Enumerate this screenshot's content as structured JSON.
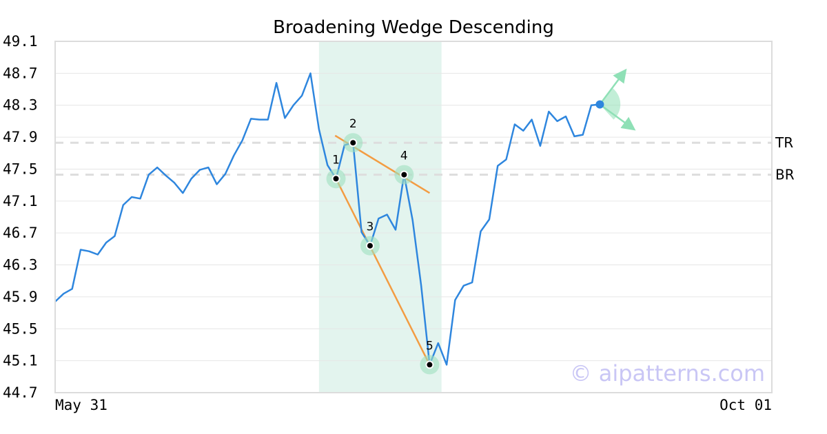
{
  "chart_data": {
    "type": "line",
    "title": "Broadening Wedge Descending",
    "xlabel": "",
    "ylabel": "",
    "x_tick_labels": [
      "May 31",
      "Oct 01"
    ],
    "y_ticks": [
      "49.1",
      "48.7",
      "48.3",
      "47.9",
      "47.5",
      "47.1",
      "46.7",
      "46.3",
      "45.9",
      "45.5",
      "45.1",
      "44.7"
    ],
    "ylim": [
      44.7,
      49.1
    ],
    "grid": true,
    "colors": {
      "price": "#2e86de",
      "trendline": "#f39c42",
      "highlight": "#e3f4ee",
      "pivot": "#9fe0c0",
      "level": "#dddddd",
      "arrow": "#8fe0b6",
      "last_point": "#2e86de"
    },
    "series": [
      {
        "values": [
          45.84,
          45.94,
          46.0,
          46.49,
          46.47,
          46.43,
          46.58,
          46.66,
          47.05,
          47.15,
          47.13,
          47.43,
          47.52,
          47.42,
          47.33,
          47.2,
          47.38,
          47.49,
          47.52,
          47.31,
          47.44,
          47.67,
          47.86,
          48.13,
          48.12,
          48.12,
          48.58,
          48.14,
          48.3,
          48.42,
          48.7,
          48.0,
          47.55,
          47.38,
          47.8,
          47.83,
          46.71,
          46.54,
          46.88,
          46.93,
          46.74,
          47.43,
          46.86,
          46.05,
          45.05,
          45.32,
          45.05,
          45.86,
          46.04,
          46.08,
          46.72,
          46.87,
          47.54,
          47.62,
          48.06,
          47.98,
          48.12,
          47.79,
          48.22,
          48.1,
          48.16,
          47.91,
          47.93,
          48.3,
          48.31
        ]
      }
    ],
    "levels": [
      {
        "label": "TR",
        "value": 47.83
      },
      {
        "label": "BR",
        "value": 47.43
      }
    ],
    "pivots": [
      {
        "label": "1",
        "index": 33,
        "value": 47.38
      },
      {
        "label": "2",
        "index": 35,
        "value": 47.83
      },
      {
        "label": "3",
        "index": 37,
        "value": 46.54
      },
      {
        "label": "4",
        "index": 41,
        "value": 47.43
      },
      {
        "label": "5",
        "index": 44,
        "value": 45.05
      }
    ],
    "trendlines": [
      {
        "from_index": 32.9,
        "from_value": 47.92,
        "to_index": 44.0,
        "to_value": 47.2
      },
      {
        "from_index": 33.0,
        "from_value": 47.38,
        "to_index": 44.0,
        "to_value": 45.05
      }
    ],
    "highlight_range": {
      "from_index": 31,
      "to_index": 45.4
    }
  },
  "watermark": "© aipatterns.com"
}
